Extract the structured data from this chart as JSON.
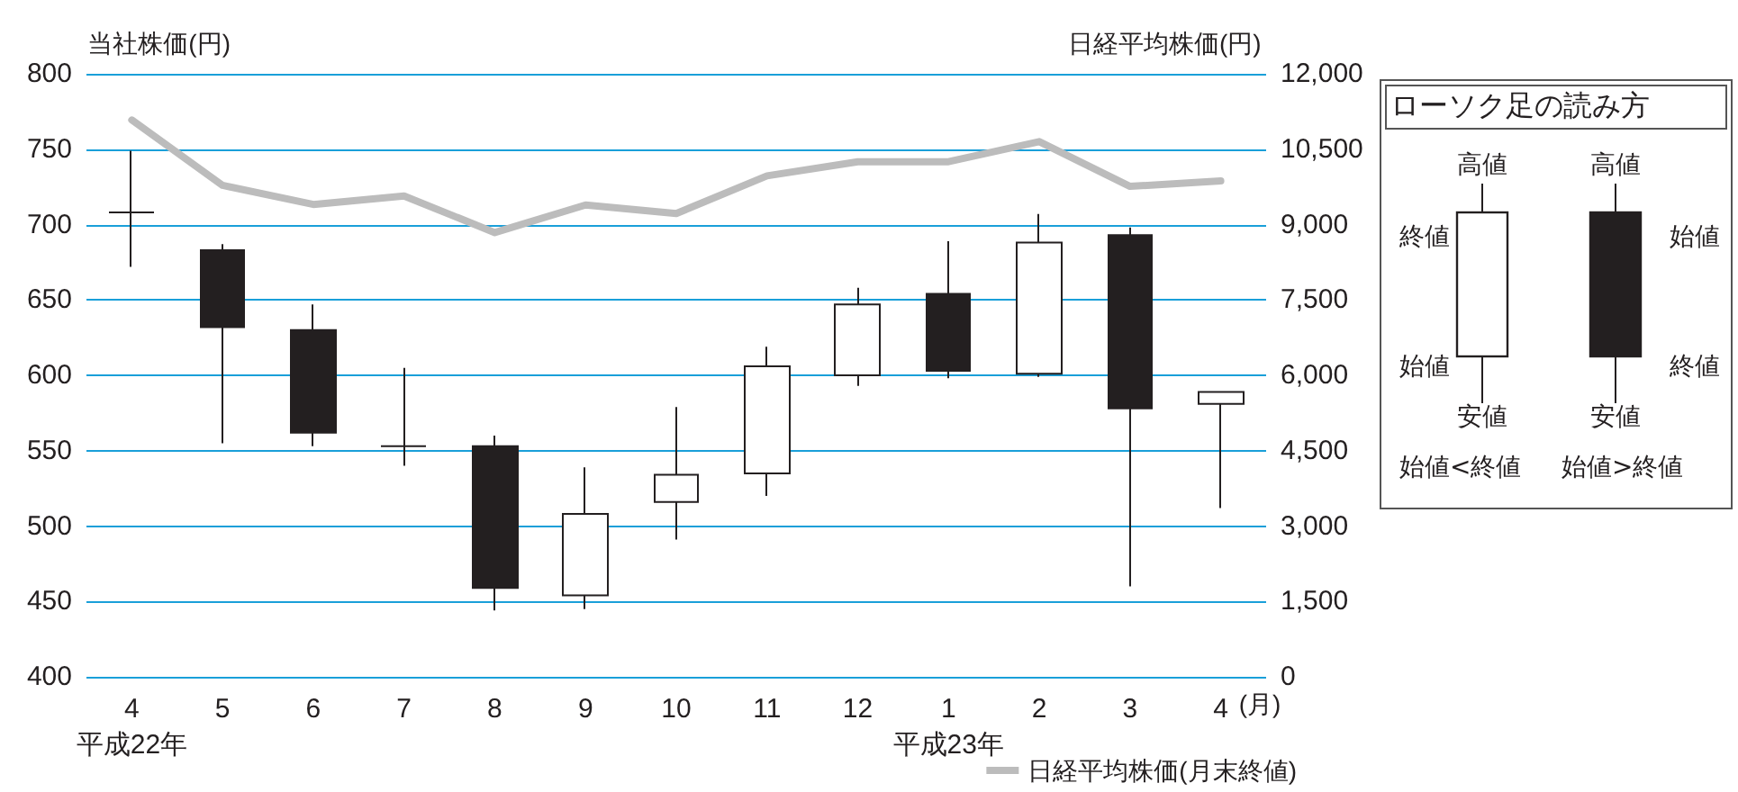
{
  "chart_data": [
    {
      "type": "candlestick",
      "ylabel": "当社株価(円)",
      "y2label": "日経平均株価(円)",
      "xlabel": "(月)",
      "categories": [
        "4\n平成22年",
        "5",
        "6",
        "7",
        "8",
        "9",
        "10",
        "11",
        "12",
        "1\n平成23年",
        "2",
        "3",
        "4"
      ],
      "ylim": [
        400,
        800
      ],
      "yticks": [
        400,
        450,
        500,
        550,
        600,
        650,
        700,
        750,
        800
      ],
      "y2lim": [
        0,
        12000
      ],
      "y2ticks": [
        0,
        {
          "value": 1500,
          "label": "1,500"
        },
        {
          "value": 3000,
          "label": "3,000"
        },
        {
          "value": 4500,
          "label": "4,500"
        },
        {
          "value": 6000,
          "label": "6,000"
        },
        {
          "value": 7500,
          "label": "7,500"
        },
        {
          "value": 9000,
          "label": "9,000"
        },
        {
          "value": 10500,
          "label": "10,500"
        },
        {
          "value": 12000,
          "label": "12,000"
        }
      ],
      "grid": "y",
      "legend": "bottom right",
      "marker": "none",
      "series": [
        {
          "type": "candlestick",
          "color": "#231f20",
          "ohlc": [
            [
              708,
              749,
              672,
              708
            ],
            [
              683,
              687,
              555,
              632
            ],
            [
              630,
              647,
              553,
              562
            ],
            [
              553,
              605,
              540,
              553
            ],
            [
              553,
              560,
              444,
              459
            ],
            [
              454,
              539,
              445,
              508
            ],
            [
              516,
              579,
              491,
              534
            ],
            [
              535,
              619,
              520,
              606
            ],
            [
              600,
              658,
              593,
              647
            ],
            [
              654,
              689,
              598,
              603
            ],
            [
              601,
              707,
              599,
              688
            ],
            [
              693,
              698,
              460,
              578
            ],
            [
              581,
              589,
              512,
              589
            ]
          ]
        },
        {
          "type": "line",
          "name": "日経平均株価(月末終値)",
          "color": "#bcbcbc",
          "axis": "y2",
          "values": [
            11080,
            9780,
            9400,
            9570,
            8840,
            9390,
            9220,
            9970,
            10250,
            10250,
            10650,
            9760,
            9870
          ]
        }
      ]
    },
    {
      "type": "other",
      "title": "ローソク足の読み方",
      "annotations": [
        "高値",
        "高値",
        "終値",
        "始値",
        "始値",
        "終値",
        "安値",
        "安値",
        "始値<終値",
        "始値>終値"
      ]
    }
  ]
}
